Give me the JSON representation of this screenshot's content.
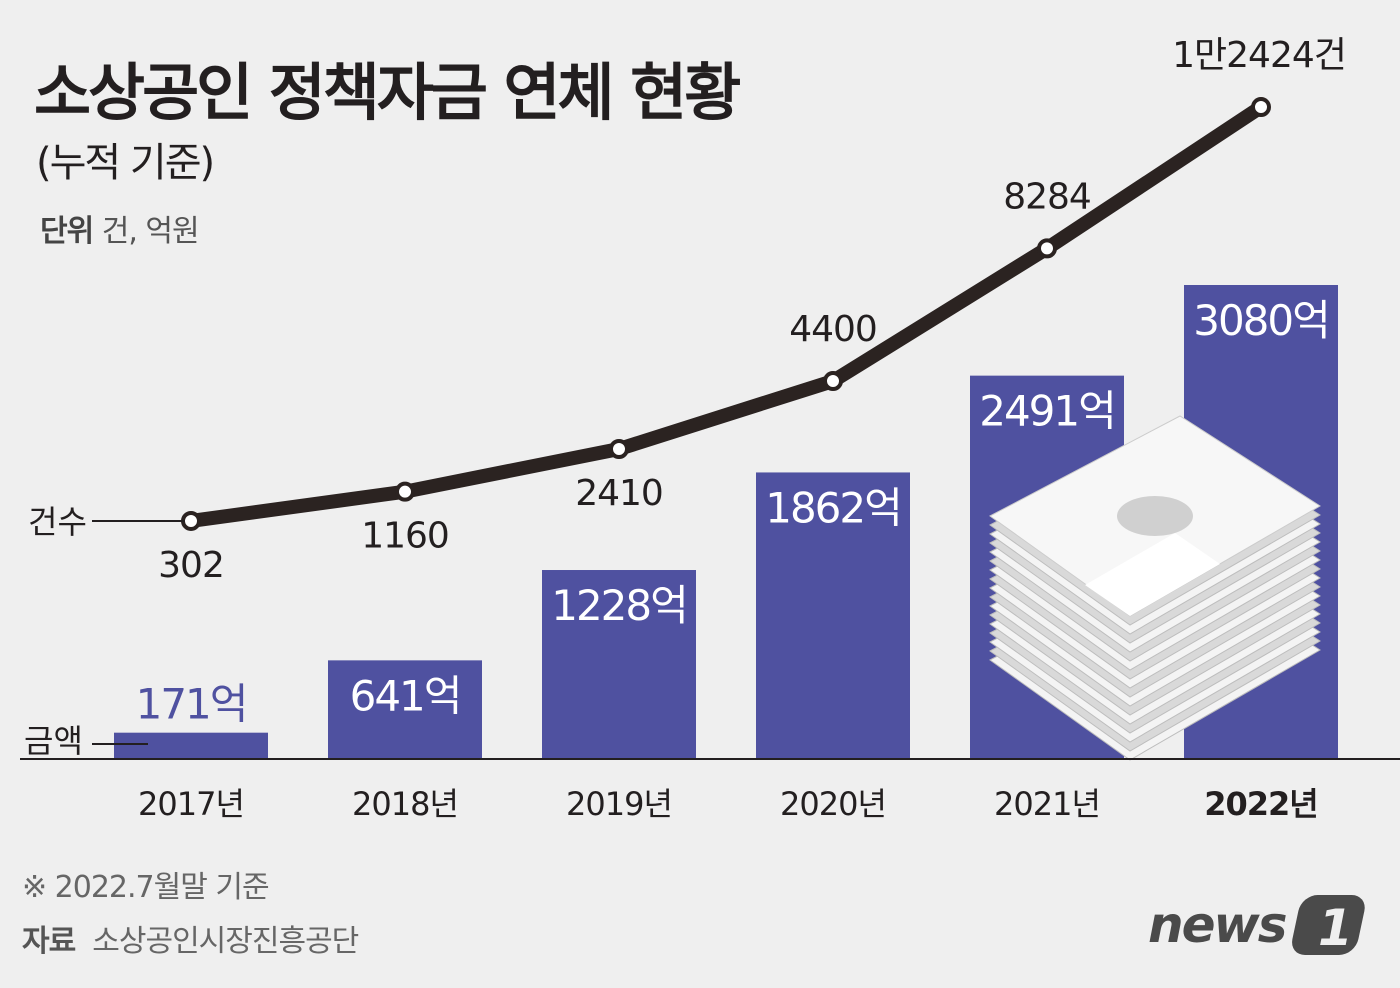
{
  "title": "소상공인 정책자금 연체 현황",
  "subtitle": "(누적 기준)",
  "unit_label": "단위",
  "unit_value": "건, 억원",
  "note": "※ 2022.7월말 기준",
  "source_label": "자료",
  "source_value": "소상공인시장진흥공단",
  "logo": "news1",
  "colors": {
    "bar": "#4f51a0",
    "line": "#2b2321",
    "background": "#efefef"
  },
  "chart_data": {
    "type": "bar+line",
    "categories": [
      "2017년",
      "2018년",
      "2019년",
      "2020년",
      "2021년",
      "2022년"
    ],
    "series": [
      {
        "name": "금액",
        "type": "bar",
        "unit": "억원",
        "values": [
          171,
          641,
          1228,
          1862,
          2491,
          3080
        ],
        "labels": [
          "171억",
          "641억",
          "1228억",
          "1862억",
          "2491억",
          "3080억"
        ]
      },
      {
        "name": "건수",
        "type": "line",
        "unit": "건",
        "values": [
          302,
          1160,
          2410,
          4400,
          8284,
          12424
        ],
        "labels": [
          "302",
          "1160",
          "2410",
          "4400",
          "8284",
          "1만2424건"
        ]
      }
    ],
    "grid": false,
    "icon": "money-stack-icon"
  }
}
